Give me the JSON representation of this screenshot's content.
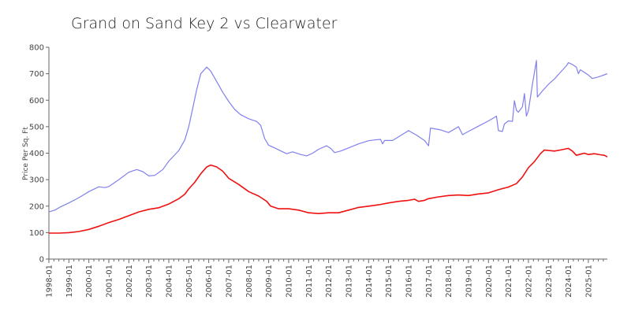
{
  "chart_data": {
    "type": "line",
    "title": "Grand on Sand Key 2 vs Clearwater",
    "xlabel": "",
    "ylabel": "Price Per Sq. Ft",
    "ylim": [
      0,
      800
    ],
    "yticks": [
      0,
      100,
      200,
      300,
      400,
      500,
      600,
      700,
      800
    ],
    "xlim": [
      1998.0,
      2025.95
    ],
    "xtick_labels": [
      "1998-01",
      "1999-01",
      "2000-01",
      "2001-01",
      "2002-01",
      "2003-01",
      "2004-01",
      "2005-01",
      "2006-01",
      "2007-01",
      "2008-01",
      "2009-01",
      "2010-01",
      "2011-01",
      "2012-01",
      "2013-01",
      "2014-01",
      "2015-01",
      "2016-01",
      "2017-01",
      "2018-01",
      "2019-01",
      "2020-01",
      "2021-01",
      "2022-01",
      "2023-01",
      "2024-01",
      "2025-01"
    ],
    "grid": false,
    "series": [
      {
        "color": "#8080ee",
        "points": [
          [
            1998.0,
            178
          ],
          [
            1998.3,
            185
          ],
          [
            1998.6,
            198
          ],
          [
            1999.0,
            212
          ],
          [
            1999.5,
            232
          ],
          [
            2000.0,
            255
          ],
          [
            2000.5,
            273
          ],
          [
            2000.8,
            270
          ],
          [
            2001.0,
            274
          ],
          [
            2001.5,
            300
          ],
          [
            2002.0,
            328
          ],
          [
            2002.4,
            338
          ],
          [
            2002.7,
            330
          ],
          [
            2003.0,
            314
          ],
          [
            2003.3,
            316
          ],
          [
            2003.7,
            338
          ],
          [
            2004.0,
            370
          ],
          [
            2004.5,
            410
          ],
          [
            2004.8,
            450
          ],
          [
            2005.0,
            500
          ],
          [
            2005.2,
            570
          ],
          [
            2005.4,
            640
          ],
          [
            2005.6,
            700
          ],
          [
            2005.9,
            725
          ],
          [
            2006.1,
            710
          ],
          [
            2006.4,
            670
          ],
          [
            2006.7,
            630
          ],
          [
            2007.0,
            595
          ],
          [
            2007.3,
            565
          ],
          [
            2007.6,
            545
          ],
          [
            2008.0,
            530
          ],
          [
            2008.4,
            520
          ],
          [
            2008.6,
            505
          ],
          [
            2008.8,
            455
          ],
          [
            2009.0,
            430
          ],
          [
            2009.3,
            420
          ],
          [
            2009.7,
            405
          ],
          [
            2009.9,
            398
          ],
          [
            2010.2,
            405
          ],
          [
            2010.6,
            395
          ],
          [
            2010.9,
            390
          ],
          [
            2011.2,
            400
          ],
          [
            2011.5,
            415
          ],
          [
            2011.9,
            428
          ],
          [
            2012.1,
            418
          ],
          [
            2012.3,
            402
          ],
          [
            2012.6,
            408
          ],
          [
            2013.0,
            420
          ],
          [
            2013.5,
            435
          ],
          [
            2014.0,
            447
          ],
          [
            2014.3,
            450
          ],
          [
            2014.6,
            452
          ],
          [
            2014.7,
            435
          ],
          [
            2014.8,
            448
          ],
          [
            2015.2,
            448
          ],
          [
            2015.5,
            462
          ],
          [
            2016.0,
            485
          ],
          [
            2016.4,
            468
          ],
          [
            2016.8,
            448
          ],
          [
            2017.0,
            428
          ],
          [
            2017.1,
            495
          ],
          [
            2017.6,
            488
          ],
          [
            2018.0,
            478
          ],
          [
            2018.5,
            500
          ],
          [
            2018.7,
            470
          ],
          [
            2019.0,
            482
          ],
          [
            2019.5,
            502
          ],
          [
            2020.0,
            522
          ],
          [
            2020.3,
            535
          ],
          [
            2020.4,
            540
          ],
          [
            2020.5,
            485
          ],
          [
            2020.7,
            482
          ],
          [
            2020.8,
            510
          ],
          [
            2021.0,
            522
          ],
          [
            2021.2,
            520
          ],
          [
            2021.3,
            598
          ],
          [
            2021.4,
            562
          ],
          [
            2021.5,
            555
          ],
          [
            2021.7,
            575
          ],
          [
            2021.8,
            625
          ],
          [
            2021.9,
            540
          ],
          [
            2022.0,
            560
          ],
          [
            2022.2,
            660
          ],
          [
            2022.4,
            750
          ],
          [
            2022.45,
            612
          ],
          [
            2022.7,
            635
          ],
          [
            2023.0,
            660
          ],
          [
            2023.3,
            680
          ],
          [
            2023.6,
            705
          ],
          [
            2023.9,
            730
          ],
          [
            2024.0,
            742
          ],
          [
            2024.2,
            735
          ],
          [
            2024.4,
            725
          ],
          [
            2024.5,
            700
          ],
          [
            2024.6,
            715
          ],
          [
            2024.8,
            705
          ],
          [
            2025.0,
            695
          ],
          [
            2025.2,
            682
          ],
          [
            2025.5,
            688
          ],
          [
            2025.8,
            696
          ],
          [
            2025.95,
            700
          ]
        ]
      },
      {
        "color": "#ee1111",
        "points": [
          [
            1998.0,
            98
          ],
          [
            1998.5,
            98
          ],
          [
            1999.0,
            100
          ],
          [
            1999.5,
            104
          ],
          [
            2000.0,
            112
          ],
          [
            2000.5,
            124
          ],
          [
            2001.0,
            138
          ],
          [
            2001.5,
            150
          ],
          [
            2002.0,
            164
          ],
          [
            2002.5,
            178
          ],
          [
            2003.0,
            188
          ],
          [
            2003.5,
            194
          ],
          [
            2004.0,
            208
          ],
          [
            2004.5,
            228
          ],
          [
            2004.8,
            245
          ],
          [
            2005.0,
            265
          ],
          [
            2005.3,
            290
          ],
          [
            2005.6,
            322
          ],
          [
            2005.9,
            348
          ],
          [
            2006.1,
            355
          ],
          [
            2006.4,
            348
          ],
          [
            2006.7,
            332
          ],
          [
            2007.0,
            305
          ],
          [
            2007.5,
            282
          ],
          [
            2008.0,
            255
          ],
          [
            2008.5,
            238
          ],
          [
            2008.9,
            218
          ],
          [
            2009.1,
            200
          ],
          [
            2009.5,
            190
          ],
          [
            2010.0,
            190
          ],
          [
            2010.5,
            185
          ],
          [
            2011.0,
            175
          ],
          [
            2011.5,
            172
          ],
          [
            2012.0,
            175
          ],
          [
            2012.5,
            175
          ],
          [
            2013.0,
            185
          ],
          [
            2013.5,
            195
          ],
          [
            2014.0,
            200
          ],
          [
            2014.5,
            205
          ],
          [
            2015.0,
            212
          ],
          [
            2015.5,
            218
          ],
          [
            2016.0,
            222
          ],
          [
            2016.3,
            226
          ],
          [
            2016.5,
            218
          ],
          [
            2016.8,
            222
          ],
          [
            2017.0,
            228
          ],
          [
            2017.5,
            235
          ],
          [
            2018.0,
            240
          ],
          [
            2018.5,
            242
          ],
          [
            2019.0,
            240
          ],
          [
            2019.5,
            246
          ],
          [
            2020.0,
            250
          ],
          [
            2020.5,
            262
          ],
          [
            2021.0,
            272
          ],
          [
            2021.4,
            285
          ],
          [
            2021.7,
            310
          ],
          [
            2022.0,
            345
          ],
          [
            2022.3,
            368
          ],
          [
            2022.6,
            398
          ],
          [
            2022.8,
            412
          ],
          [
            2023.0,
            410
          ],
          [
            2023.3,
            408
          ],
          [
            2023.6,
            412
          ],
          [
            2024.0,
            418
          ],
          [
            2024.2,
            408
          ],
          [
            2024.4,
            392
          ],
          [
            2024.6,
            396
          ],
          [
            2024.8,
            400
          ],
          [
            2025.0,
            395
          ],
          [
            2025.3,
            398
          ],
          [
            2025.6,
            394
          ],
          [
            2025.8,
            392
          ],
          [
            2025.95,
            386
          ]
        ]
      }
    ]
  }
}
